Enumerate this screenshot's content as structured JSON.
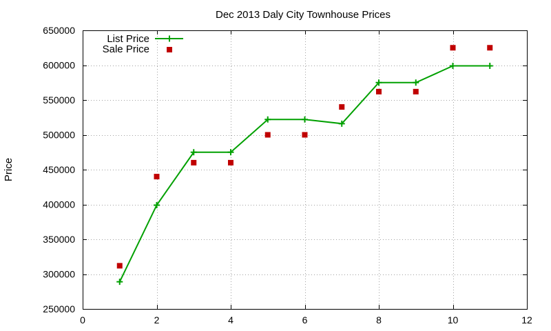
{
  "chart_data": {
    "type": "line",
    "title": "Dec 2013 Daly City Townhouse Prices",
    "xlabel": "",
    "ylabel": "Price",
    "xlim": [
      0,
      12
    ],
    "ylim": [
      250000,
      650000
    ],
    "x_ticks": [
      "0",
      "2",
      "4",
      "6",
      "8",
      "10",
      "12"
    ],
    "y_ticks": [
      "250000",
      "300000",
      "350000",
      "400000",
      "450000",
      "500000",
      "550000",
      "600000",
      "650000"
    ],
    "grid": true,
    "legend_position": "top-left",
    "series": [
      {
        "name": "List Price",
        "style": "line+plus",
        "color": "#00a000",
        "x": [
          1,
          2,
          3,
          4,
          5,
          6,
          7,
          8,
          9,
          10,
          11
        ],
        "y": [
          289000,
          399000,
          475000,
          475000,
          522000,
          522000,
          516000,
          575000,
          575000,
          599000,
          599000
        ]
      },
      {
        "name": "Sale Price",
        "style": "square",
        "color": "#c00000",
        "x": [
          1,
          2,
          3,
          4,
          5,
          6,
          7,
          8,
          9,
          10,
          11
        ],
        "y": [
          312000,
          440000,
          460000,
          460000,
          500000,
          500000,
          540000,
          562000,
          562000,
          625000,
          625000
        ]
      }
    ]
  }
}
